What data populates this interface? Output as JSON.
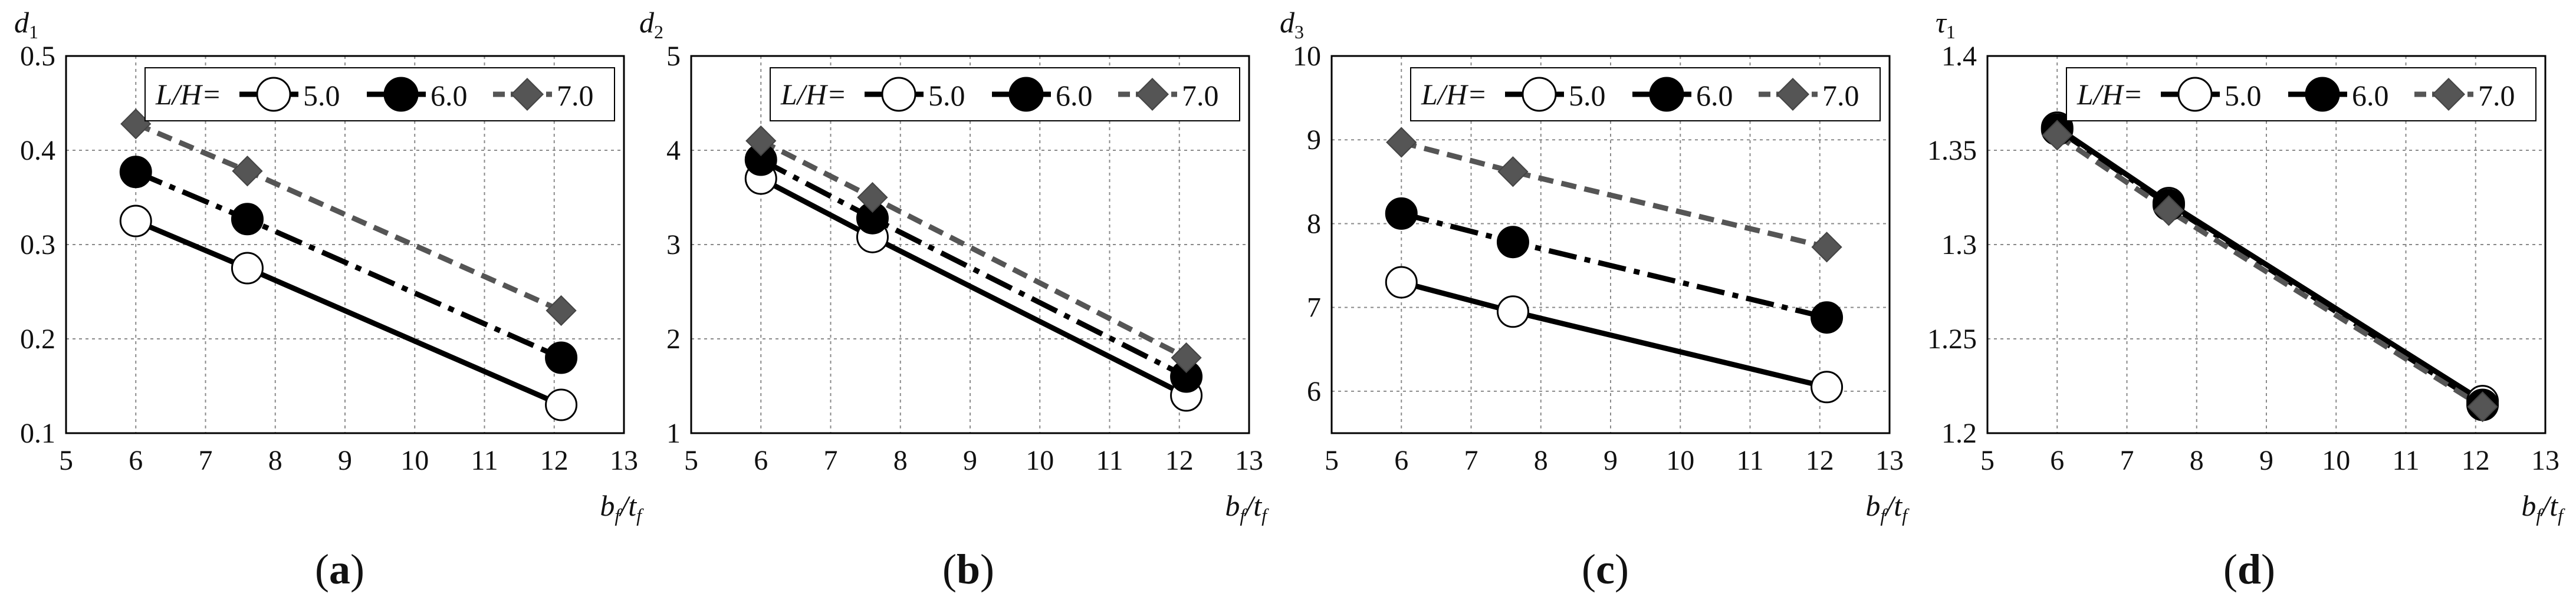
{
  "colors": {
    "s0": "#000000",
    "s1": "#000000",
    "s2": "#555555",
    "marker_fill_0": "#ffffff",
    "marker_fill_1": "#000000",
    "marker_fill_2": "#555555"
  },
  "chart_data": [
    {
      "type": "line",
      "panel": "(a)",
      "ylabel": "d",
      "ylabel_sub": "1",
      "xlabel": "b",
      "xlabel_sub1": "f",
      "xlabel_sep": "/t",
      "xlabel_sub2": "f",
      "xlim": [
        5,
        13
      ],
      "ylim": [
        0.1,
        0.5
      ],
      "xticks": [
        "5",
        "6",
        "7",
        "8",
        "9",
        "10",
        "11",
        "12",
        "13"
      ],
      "yticks": [
        "0.1",
        "0.2",
        "0.3",
        "0.4",
        "0.5"
      ],
      "yticks_values": [
        0.1,
        0.2,
        0.3,
        0.4,
        0.5
      ],
      "legend_prefix": "L/H=",
      "series": [
        {
          "name": "5.0",
          "x": [
            6.0,
            7.6,
            12.1
          ],
          "y": [
            0.325,
            0.275,
            0.13
          ]
        },
        {
          "name": "6.0",
          "x": [
            6.0,
            7.6,
            12.1
          ],
          "y": [
            0.377,
            0.327,
            0.18
          ]
        },
        {
          "name": "7.0",
          "x": [
            6.0,
            7.6,
            12.1
          ],
          "y": [
            0.428,
            0.378,
            0.23
          ]
        }
      ]
    },
    {
      "type": "line",
      "panel": "(b)",
      "ylabel": "d",
      "ylabel_sub": "2",
      "xlabel": "b",
      "xlabel_sub1": "f",
      "xlabel_sep": "/t",
      "xlabel_sub2": "f",
      "xlim": [
        5,
        13
      ],
      "ylim": [
        1,
        5
      ],
      "xticks": [
        "5",
        "6",
        "7",
        "8",
        "9",
        "10",
        "11",
        "12",
        "13"
      ],
      "yticks": [
        "1",
        "2",
        "3",
        "4",
        "5"
      ],
      "yticks_values": [
        1,
        2,
        3,
        4,
        5
      ],
      "legend_prefix": "L/H=",
      "series": [
        {
          "name": "5.0",
          "x": [
            6.0,
            7.6,
            12.1
          ],
          "y": [
            3.7,
            3.08,
            1.4
          ]
        },
        {
          "name": "6.0",
          "x": [
            6.0,
            7.6,
            12.1
          ],
          "y": [
            3.9,
            3.28,
            1.6
          ]
        },
        {
          "name": "7.0",
          "x": [
            6.0,
            7.6,
            12.1
          ],
          "y": [
            4.1,
            3.5,
            1.8
          ]
        }
      ]
    },
    {
      "type": "line",
      "panel": "(c)",
      "ylabel": "d",
      "ylabel_sub": "3",
      "xlabel": "b",
      "xlabel_sub1": "f",
      "xlabel_sep": "/t",
      "xlabel_sub2": "f",
      "xlim": [
        5,
        13
      ],
      "ylim": [
        5.5,
        10
      ],
      "xticks": [
        "5",
        "6",
        "7",
        "8",
        "9",
        "10",
        "11",
        "12",
        "13"
      ],
      "yticks": [
        "6",
        "7",
        "8",
        "9",
        "10"
      ],
      "yticks_values": [
        6,
        7,
        8,
        9,
        10
      ],
      "legend_prefix": "L/H=",
      "series": [
        {
          "name": "5.0",
          "x": [
            6.0,
            7.6,
            12.1
          ],
          "y": [
            7.3,
            6.95,
            6.05
          ]
        },
        {
          "name": "6.0",
          "x": [
            6.0,
            7.6,
            12.1
          ],
          "y": [
            8.12,
            7.78,
            6.88
          ]
        },
        {
          "name": "7.0",
          "x": [
            6.0,
            7.6,
            12.1
          ],
          "y": [
            8.97,
            8.62,
            7.72
          ]
        }
      ]
    },
    {
      "type": "line",
      "panel": "(d)",
      "ylabel": "τ",
      "ylabel_sub": "1",
      "xlabel": "b",
      "xlabel_sub1": "f",
      "xlabel_sep": "/t",
      "xlabel_sub2": "f",
      "xlim": [
        5,
        13
      ],
      "ylim": [
        1.2,
        1.4
      ],
      "xticks": [
        "5",
        "6",
        "7",
        "8",
        "9",
        "10",
        "11",
        "12",
        "13"
      ],
      "yticks": [
        "1.2",
        "1.25",
        "1.3",
        "1.35",
        "1.4"
      ],
      "yticks_values": [
        1.2,
        1.25,
        1.3,
        1.35,
        1.4
      ],
      "legend_prefix": "L/H=",
      "series": [
        {
          "name": "5.0",
          "x": [
            6.0,
            7.6,
            12.1
          ],
          "y": [
            1.362,
            1.322,
            1.217
          ]
        },
        {
          "name": "6.0",
          "x": [
            6.0,
            7.6,
            12.1
          ],
          "y": [
            1.361,
            1.321,
            1.215
          ]
        },
        {
          "name": "7.0",
          "x": [
            6.0,
            7.6,
            12.1
          ],
          "y": [
            1.358,
            1.318,
            1.214
          ]
        }
      ]
    }
  ]
}
